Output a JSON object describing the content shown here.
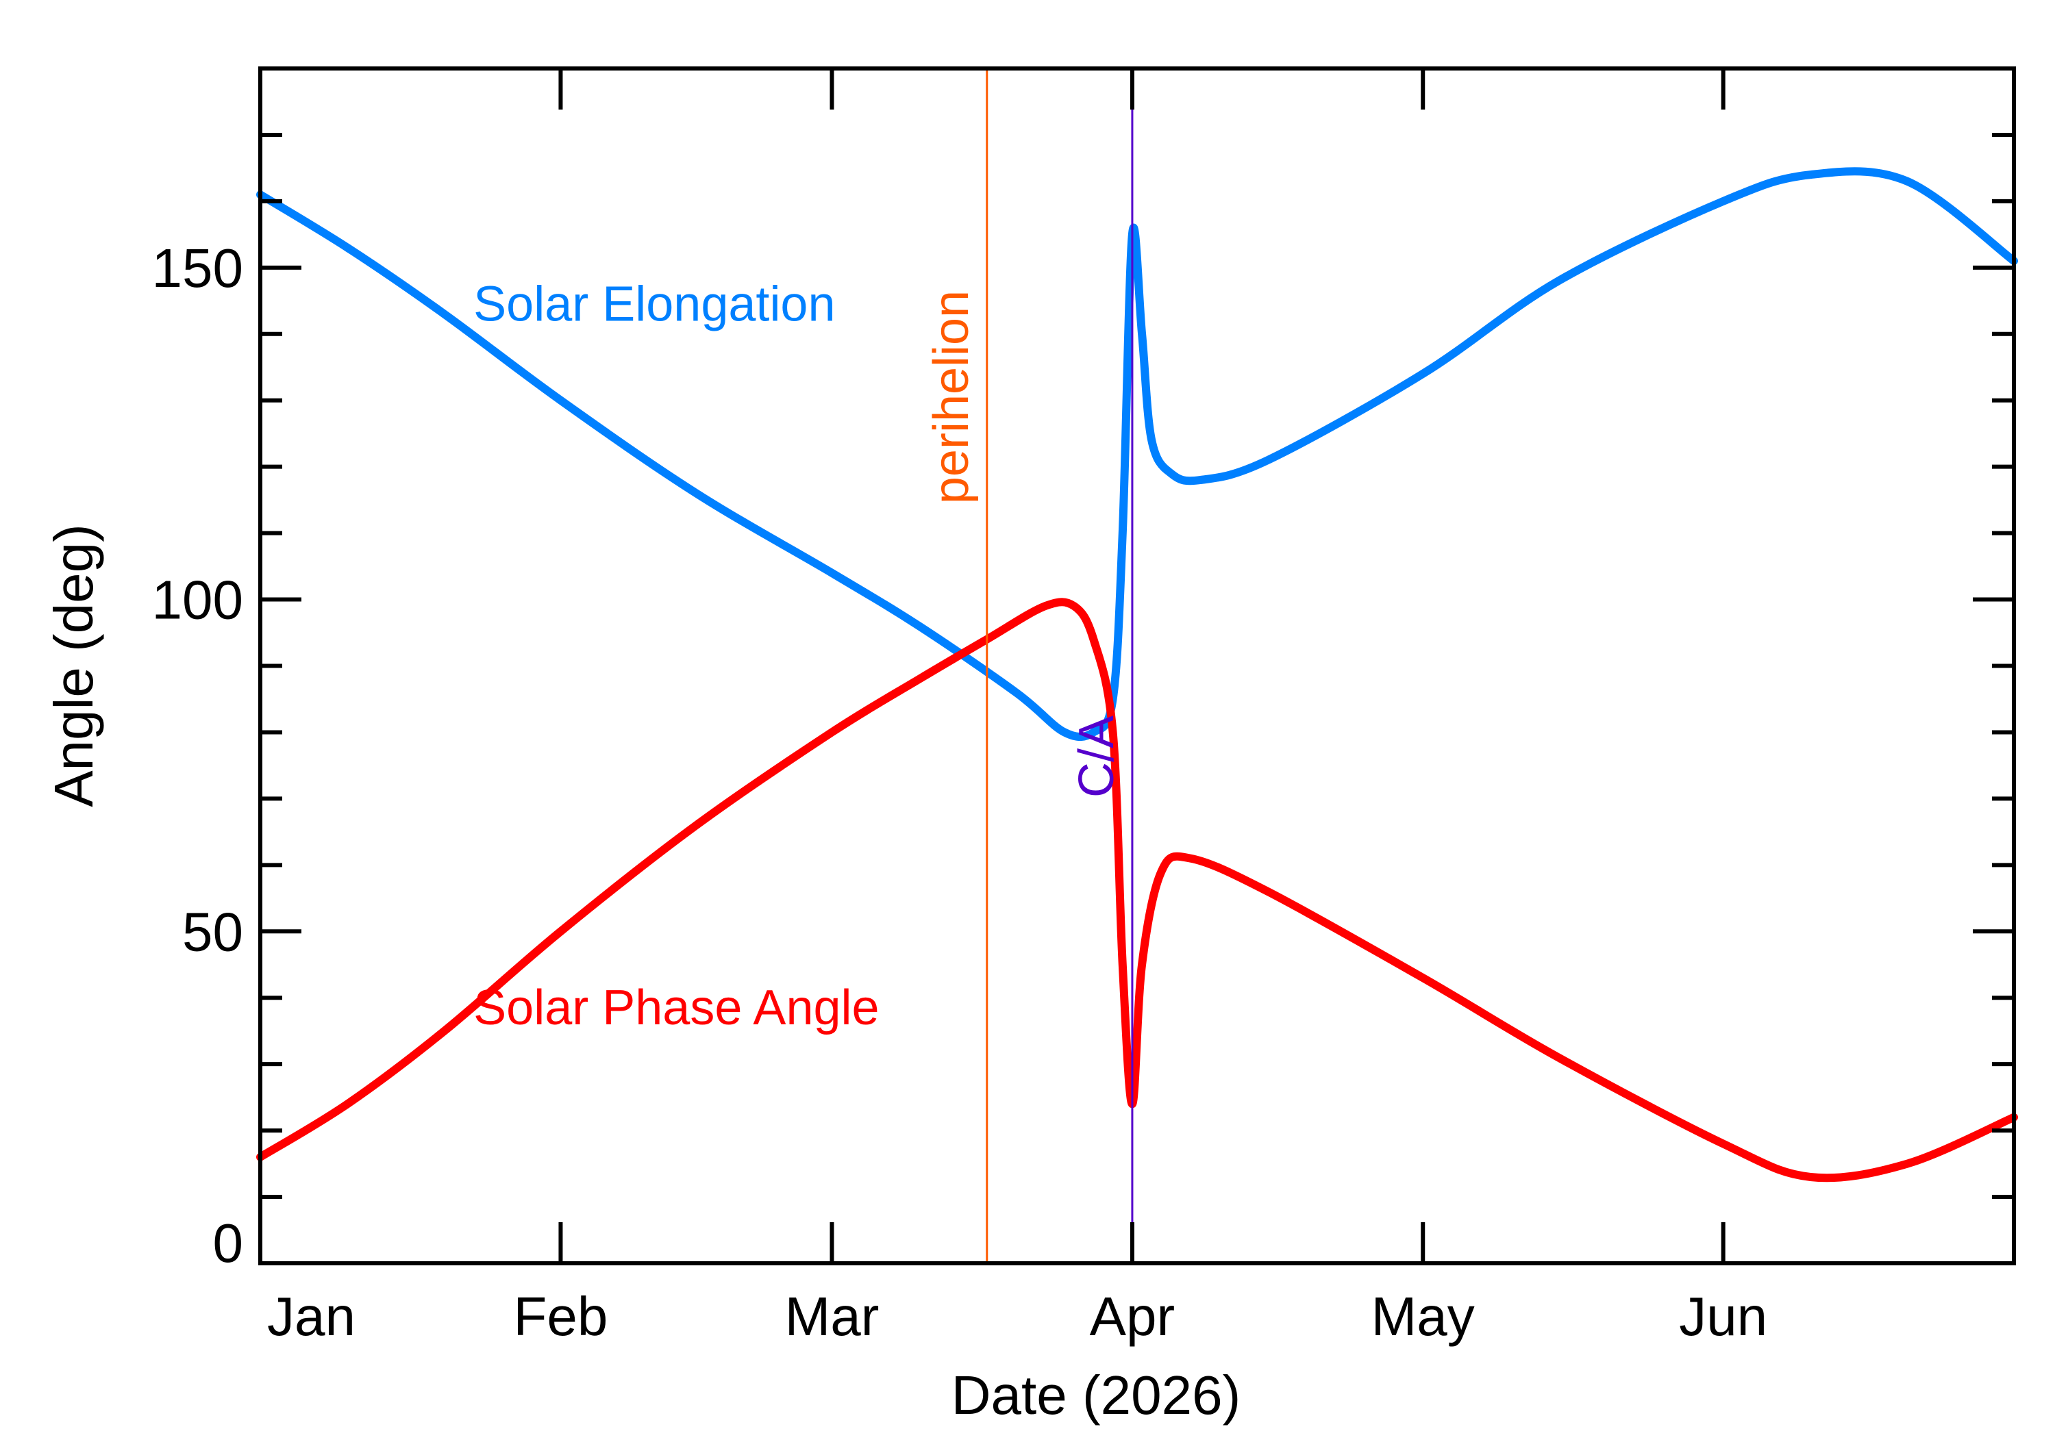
{
  "chart_data": {
    "type": "line",
    "title": "",
    "xlabel": "Date (2026)",
    "ylabel": "Angle (deg)",
    "xlim": [
      "2026-01-01",
      "2026-07-01"
    ],
    "ylim": [
      0,
      180
    ],
    "x_ticks": [
      {
        "label": "Jan",
        "date": "2026-01-01"
      },
      {
        "label": "Feb",
        "date": "2026-02-01"
      },
      {
        "label": "Mar",
        "date": "2026-03-01"
      },
      {
        "label": "Apr",
        "date": "2026-04-01"
      },
      {
        "label": "May",
        "date": "2026-05-01"
      },
      {
        "label": "Jun",
        "date": "2026-06-01"
      }
    ],
    "y_ticks": [
      {
        "label": "0",
        "value": 0
      },
      {
        "label": "50",
        "value": 50
      },
      {
        "label": "100",
        "value": 100
      },
      {
        "label": "150",
        "value": 150
      }
    ],
    "grid": false,
    "markers": [
      {
        "label": "perihelion",
        "date": "2026-03-17",
        "color": "#ff5a00"
      },
      {
        "label": "C/A",
        "date": "2026-04-01",
        "color": "#5500cc"
      }
    ],
    "series": [
      {
        "name": "Solar Elongation",
        "color": "#0080ff",
        "points": [
          [
            "2026-01-01",
            161
          ],
          [
            "2026-01-10",
            153
          ],
          [
            "2026-01-20",
            143
          ],
          [
            "2026-02-01",
            130
          ],
          [
            "2026-02-15",
            116
          ],
          [
            "2026-03-01",
            104
          ],
          [
            "2026-03-10",
            96
          ],
          [
            "2026-03-20",
            86
          ],
          [
            "2026-03-25",
            80
          ],
          [
            "2026-03-28",
            80
          ],
          [
            "2026-03-30",
            85
          ],
          [
            "2026-03-31",
            110
          ],
          [
            "2026-04-01",
            155
          ],
          [
            "2026-04-02",
            140
          ],
          [
            "2026-04-03",
            124
          ],
          [
            "2026-04-05",
            119
          ],
          [
            "2026-04-08",
            118
          ],
          [
            "2026-04-15",
            121
          ],
          [
            "2026-05-01",
            134
          ],
          [
            "2026-05-15",
            148
          ],
          [
            "2026-06-01",
            160
          ],
          [
            "2026-06-10",
            164
          ],
          [
            "2026-06-20",
            163
          ],
          [
            "2026-07-01",
            151
          ]
        ]
      },
      {
        "name": "Solar Phase Angle",
        "color": "#ff0000",
        "points": [
          [
            "2026-01-01",
            16
          ],
          [
            "2026-01-10",
            24
          ],
          [
            "2026-01-20",
            35
          ],
          [
            "2026-02-01",
            50
          ],
          [
            "2026-02-15",
            66
          ],
          [
            "2026-03-01",
            80
          ],
          [
            "2026-03-10",
            88
          ],
          [
            "2026-03-17",
            94
          ],
          [
            "2026-03-23",
            99
          ],
          [
            "2026-03-26",
            99
          ],
          [
            "2026-03-28",
            94
          ],
          [
            "2026-03-30",
            80
          ],
          [
            "2026-03-31",
            45
          ],
          [
            "2026-04-01",
            24
          ],
          [
            "2026-04-02",
            45
          ],
          [
            "2026-04-04",
            59
          ],
          [
            "2026-04-07",
            61
          ],
          [
            "2026-04-15",
            56
          ],
          [
            "2026-05-01",
            43
          ],
          [
            "2026-05-15",
            31
          ],
          [
            "2026-06-01",
            18
          ],
          [
            "2026-06-10",
            13
          ],
          [
            "2026-06-20",
            15
          ],
          [
            "2026-07-01",
            22
          ]
        ]
      }
    ],
    "annotations": [
      {
        "text": "Solar Elongation",
        "color": "#0080ff",
        "anchor_date": "2026-01-23",
        "anchor_value": 142
      },
      {
        "text": "Solar Phase Angle",
        "color": "#ff0000",
        "anchor_date": "2026-01-23",
        "anchor_value": 36
      }
    ]
  }
}
